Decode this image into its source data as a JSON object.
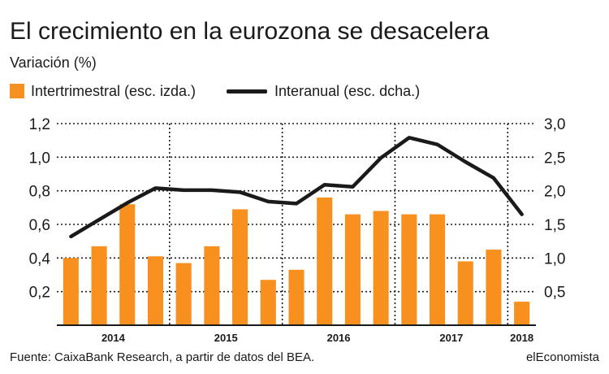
{
  "chart_data": {
    "type": "bar",
    "title": "El crecimiento en la eurozona se desacelera",
    "subtitle": "Variación (%)",
    "legend": {
      "bars": "Intertrimestral (esc. izda.)",
      "line": "Interanual (esc. dcha.)"
    },
    "x_labels": [
      "2014",
      "2015",
      "2016",
      "2017",
      "2018"
    ],
    "y_left": {
      "ticks": [
        "0,2",
        "0,4",
        "0,6",
        "0,8",
        "1,0",
        "1,2"
      ],
      "range": [
        0,
        1.2
      ]
    },
    "y_right": {
      "ticks": [
        "0,5",
        "1,0",
        "1,5",
        "2,0",
        "2,5",
        "3,0"
      ],
      "range": [
        0,
        3.0
      ]
    },
    "series": [
      {
        "name": "Intertrimestral (esc. izda.)",
        "axis": "left",
        "kind": "bar",
        "values": [
          0.4,
          0.47,
          0.72,
          0.41,
          0.37,
          0.47,
          0.69,
          0.27,
          0.33,
          0.76,
          0.66,
          0.68,
          0.66,
          0.66,
          0.38,
          0.45,
          0.14
        ]
      },
      {
        "name": "Interanual (esc. dcha.)",
        "axis": "right",
        "kind": "line",
        "values": [
          1.32,
          1.57,
          1.82,
          2.04,
          2.01,
          2.01,
          1.98,
          1.84,
          1.81,
          2.09,
          2.06,
          2.49,
          2.79,
          2.69,
          2.43,
          2.19,
          1.65
        ]
      }
    ]
  },
  "source": "Fuente: CaixaBank Research, a partir de datos del BEA.",
  "brand": "elEconomista",
  "colors": {
    "bar": "#f7901e",
    "line": "#1a1a1a",
    "grid": "#1a1a1a",
    "text": "#1a1a1a"
  }
}
